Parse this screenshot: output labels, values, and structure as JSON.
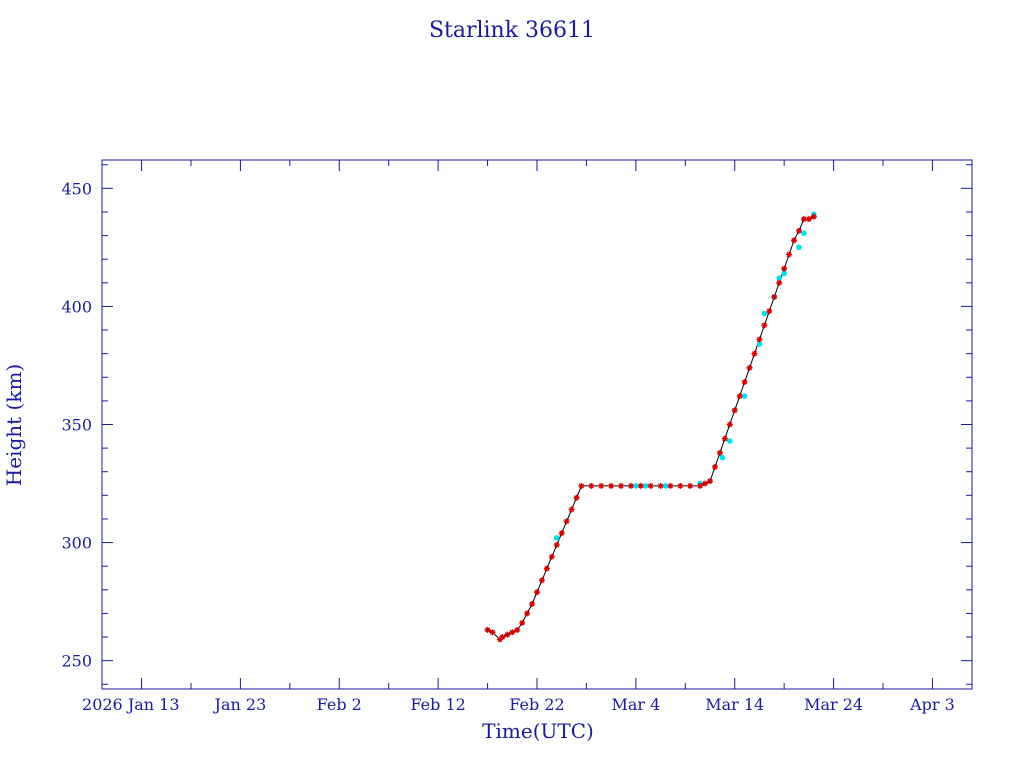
{
  "chart_data": {
    "type": "line",
    "title": "Starlink 36611",
    "xlabel": "Time(UTC)",
    "ylabel": "Height (km)",
    "xlim": [
      "2026-01-09",
      "2026-04-07"
    ],
    "ylim": [
      238,
      462
    ],
    "grid": false,
    "colors": {
      "frame": "#1a1a9c",
      "line": "#000000",
      "marker_primary": "#d40000",
      "marker_secondary": "#00e0ee"
    },
    "x_ticks": [
      {
        "date": "2026-01-13",
        "label": "2026 Jan 13"
      },
      {
        "date": "2026-01-23",
        "label": "Jan 23"
      },
      {
        "date": "2026-02-02",
        "label": "Feb  2"
      },
      {
        "date": "2026-02-12",
        "label": "Feb 12"
      },
      {
        "date": "2026-02-22",
        "label": "Feb 22"
      },
      {
        "date": "2026-03-04",
        "label": "Mar  4"
      },
      {
        "date": "2026-03-14",
        "label": "Mar 14"
      },
      {
        "date": "2026-03-24",
        "label": "Mar 24"
      },
      {
        "date": "2026-04-03",
        "label": "Apr  3"
      }
    ],
    "y_ticks": [
      250,
      300,
      350,
      400,
      450
    ],
    "series": [
      {
        "marker": "star",
        "x": [
          "2026-02-17T00:00",
          "2026-02-17T12:00",
          "2026-02-18T06:00",
          "2026-02-18T12:00",
          "2026-02-19T00:00",
          "2026-02-19T12:00",
          "2026-02-20T00:00",
          "2026-02-20T12:00",
          "2026-02-21T00:00",
          "2026-02-21T12:00",
          "2026-02-22T00:00",
          "2026-02-22T12:00",
          "2026-02-23T00:00",
          "2026-02-23T12:00",
          "2026-02-24T00:00",
          "2026-02-24T12:00",
          "2026-02-25T00:00",
          "2026-02-25T12:00",
          "2026-02-26T00:00",
          "2026-02-26T12:00",
          "2026-02-27T12:00",
          "2026-02-28T12:00",
          "2026-03-01T12:00",
          "2026-03-02T12:00",
          "2026-03-03T12:00",
          "2026-03-04T12:00",
          "2026-03-05T12:00",
          "2026-03-06T12:00",
          "2026-03-07T12:00",
          "2026-03-08T12:00",
          "2026-03-09T12:00",
          "2026-03-10T12:00",
          "2026-03-11T00:00",
          "2026-03-11T12:00",
          "2026-03-12T00:00",
          "2026-03-12T12:00",
          "2026-03-13T00:00",
          "2026-03-13T12:00",
          "2026-03-14T00:00",
          "2026-03-14T12:00",
          "2026-03-15T00:00",
          "2026-03-15T12:00",
          "2026-03-16T00:00",
          "2026-03-16T12:00",
          "2026-03-17T00:00",
          "2026-03-17T12:00",
          "2026-03-18T00:00",
          "2026-03-18T12:00",
          "2026-03-19T00:00",
          "2026-03-19T12:00",
          "2026-03-20T00:00",
          "2026-03-20T12:00",
          "2026-03-21T00:00",
          "2026-03-21T12:00",
          "2026-03-22T00:00"
        ],
        "y": [
          263,
          262,
          259,
          260,
          261,
          262,
          263,
          266,
          270,
          274,
          279,
          284,
          289,
          294,
          299,
          304,
          309,
          314,
          319,
          324,
          324,
          324,
          324,
          324,
          324,
          324,
          324,
          324,
          324,
          324,
          324,
          324,
          325,
          326,
          332,
          338,
          344,
          350,
          356,
          362,
          368,
          374,
          380,
          386,
          392,
          398,
          404,
          410,
          416,
          422,
          428,
          432,
          437,
          437,
          438
        ]
      },
      {
        "marker": "dot",
        "x": [
          "2026-02-24T00:00",
          "2026-03-04T00:00",
          "2026-03-05T00:00",
          "2026-03-07T00:00",
          "2026-03-10T12:00",
          "2026-03-12T18:00",
          "2026-03-13T12:00",
          "2026-03-15T00:00",
          "2026-03-16T12:00",
          "2026-03-17T00:00",
          "2026-03-18T00:00",
          "2026-03-18T12:00",
          "2026-03-19T00:00",
          "2026-03-20T12:00",
          "2026-03-21T00:00",
          "2026-03-22T00:00"
        ],
        "y": [
          302,
          324,
          324,
          324,
          325,
          336,
          343,
          362,
          384,
          397,
          404,
          412,
          414,
          425,
          431,
          439
        ]
      }
    ]
  }
}
